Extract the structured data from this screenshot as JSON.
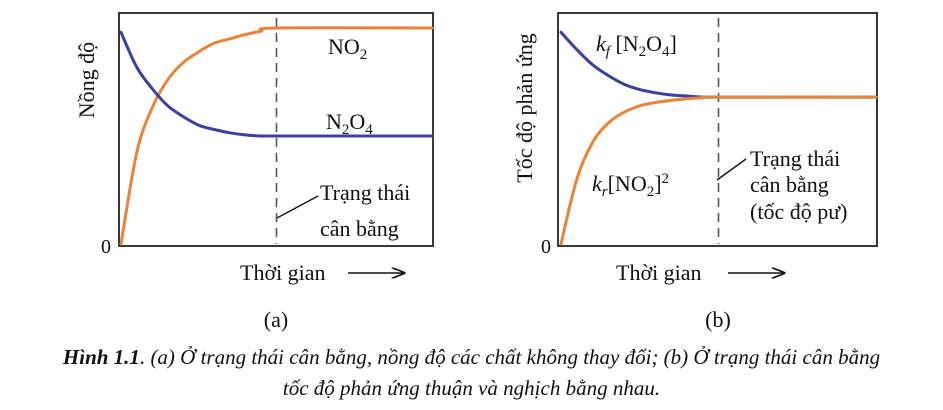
{
  "chart_data": [
    {
      "id": "a",
      "type": "line",
      "panel_label": "(a)",
      "xlabel": "Thời gian",
      "ylabel": "Nồng độ",
      "y_tick_label": "0",
      "xlim": [
        0,
        10
      ],
      "ylim": [
        0,
        1
      ],
      "equilibrium_time": 5,
      "annotation": [
        "Trạng thái",
        "cân bằng"
      ],
      "series": [
        {
          "name": "NO2",
          "color": "#E8833A",
          "x": [
            0,
            0.5,
            1,
            1.5,
            2,
            2.5,
            3,
            3.5,
            4,
            4.5,
            5,
            10
          ],
          "y": [
            0.0,
            0.42,
            0.63,
            0.76,
            0.84,
            0.89,
            0.93,
            0.95,
            0.97,
            0.985,
            1.0,
            1.0
          ]
        },
        {
          "name": "N2O4",
          "color": "#3B3F9E",
          "x": [
            0,
            0.5,
            1,
            1.5,
            2,
            2.5,
            3,
            3.5,
            4,
            4.5,
            5,
            10
          ],
          "y": [
            0.98,
            0.82,
            0.72,
            0.64,
            0.59,
            0.55,
            0.53,
            0.515,
            0.505,
            0.5,
            0.5,
            0.5
          ]
        }
      ]
    },
    {
      "id": "b",
      "type": "line",
      "panel_label": "(b)",
      "xlabel": "Thời gian",
      "ylabel": "Tốc độ phản ứng",
      "y_tick_label": "0",
      "xlim": [
        0,
        10
      ],
      "ylim": [
        0,
        1
      ],
      "equilibrium_time": 5,
      "annotation": [
        "Trạng thái",
        "cân bằng",
        "(tốc độ pư)"
      ],
      "series": [
        {
          "name": "kf[N2O4]",
          "color": "#3B3F9E",
          "x": [
            0,
            0.5,
            1,
            1.5,
            2,
            2.5,
            3,
            3.5,
            4,
            4.5,
            5,
            10
          ],
          "y": [
            0.98,
            0.9,
            0.83,
            0.78,
            0.74,
            0.715,
            0.7,
            0.69,
            0.685,
            0.68,
            0.68,
            0.68
          ]
        },
        {
          "name": "kr[NO2]2",
          "color": "#E8833A",
          "x": [
            0,
            0.5,
            1,
            1.5,
            2,
            2.5,
            3,
            3.5,
            4,
            4.5,
            5,
            10
          ],
          "y": [
            0.0,
            0.3,
            0.47,
            0.56,
            0.61,
            0.64,
            0.655,
            0.665,
            0.672,
            0.677,
            0.68,
            0.68
          ]
        }
      ]
    }
  ],
  "caption": {
    "prefix": "Hình 1.1",
    "line1": ". (a) Ở trạng thái cân bằng, nồng độ các chất không thay đổi; (b) Ở trạng thái cân bằng",
    "line2": "tốc độ phản ứng thuận và nghịch bằng nhau."
  }
}
